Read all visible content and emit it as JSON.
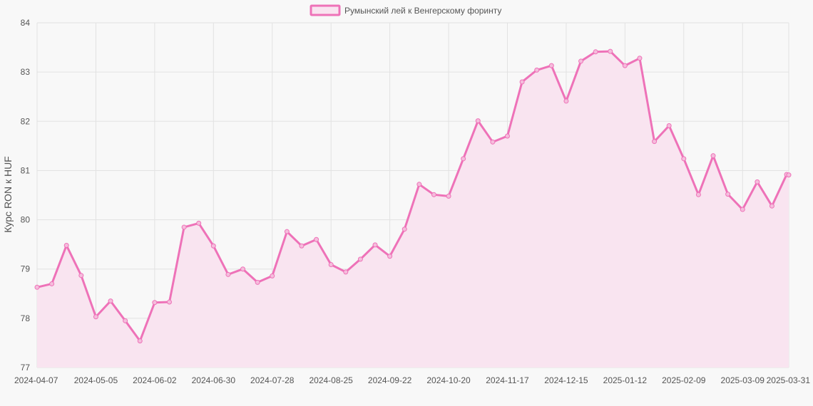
{
  "chart_data": {
    "type": "line",
    "title": "",
    "xlabel": "",
    "ylabel": "Курс RON к HUF",
    "ylim": [
      77,
      84
    ],
    "yticks": [
      77,
      78,
      79,
      80,
      81,
      82,
      83,
      84
    ],
    "grid": true,
    "legend_position": "top-center",
    "colors": {
      "line": "#ee72b8",
      "fill": "#f9e4f0",
      "grid": "#e2e2e2",
      "background": "#f8f8f8"
    },
    "xtick_labels": [
      "2024-04-07",
      "2024-05-05",
      "2024-06-02",
      "2024-06-30",
      "2024-07-28",
      "2024-08-25",
      "2024-09-22",
      "2024-10-20",
      "2024-11-17",
      "2024-12-15",
      "2025-01-12",
      "2025-02-09",
      "2025-03-09",
      "2025-03-31"
    ],
    "x": [
      "2024-04-07",
      "2024-04-14",
      "2024-04-21",
      "2024-04-28",
      "2024-05-05",
      "2024-05-12",
      "2024-05-19",
      "2024-05-26",
      "2024-06-02",
      "2024-06-09",
      "2024-06-16",
      "2024-06-23",
      "2024-06-30",
      "2024-07-07",
      "2024-07-14",
      "2024-07-21",
      "2024-07-28",
      "2024-08-04",
      "2024-08-11",
      "2024-08-18",
      "2024-08-25",
      "2024-09-01",
      "2024-09-08",
      "2024-09-15",
      "2024-09-22",
      "2024-09-29",
      "2024-10-06",
      "2024-10-13",
      "2024-10-20",
      "2024-10-27",
      "2024-11-03",
      "2024-11-10",
      "2024-11-17",
      "2024-11-24",
      "2024-12-01",
      "2024-12-08",
      "2024-12-15",
      "2024-12-22",
      "2024-12-29",
      "2025-01-05",
      "2025-01-12",
      "2025-01-19",
      "2025-01-26",
      "2025-02-02",
      "2025-02-09",
      "2025-02-16",
      "2025-02-23",
      "2025-03-02",
      "2025-03-09",
      "2025-03-16",
      "2025-03-23",
      "2025-03-30",
      "2025-03-31"
    ],
    "series": [
      {
        "name": "Румынский лей к Венгерскому форинту",
        "values": [
          78.63,
          78.7,
          79.48,
          78.87,
          78.03,
          78.35,
          77.95,
          77.54,
          78.32,
          78.33,
          79.85,
          79.93,
          79.47,
          78.89,
          79.0,
          78.73,
          78.86,
          79.76,
          79.47,
          79.6,
          79.09,
          78.94,
          79.2,
          79.49,
          79.26,
          79.81,
          80.72,
          80.51,
          80.48,
          81.24,
          82.01,
          81.58,
          81.7,
          82.8,
          83.04,
          83.13,
          82.41,
          83.22,
          83.41,
          83.42,
          83.13,
          83.28,
          81.59,
          81.91,
          81.24,
          80.51,
          81.3,
          80.52,
          80.21,
          80.77,
          80.28,
          80.92,
          80.91
        ]
      }
    ]
  }
}
